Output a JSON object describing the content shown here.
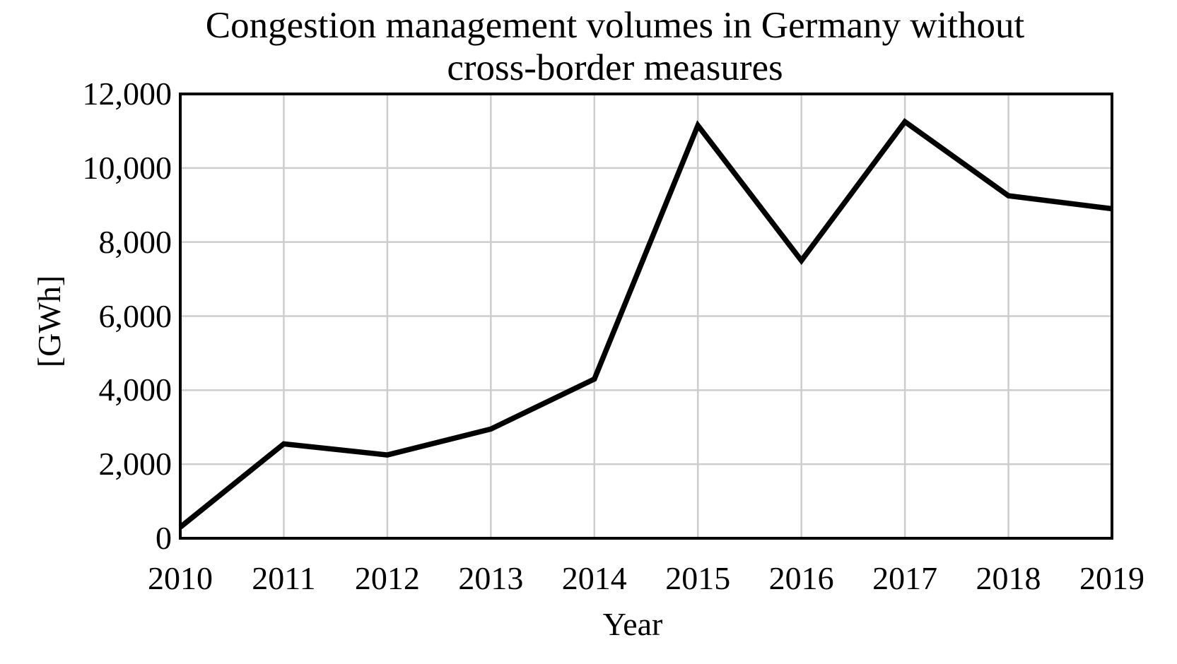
{
  "chart_data": {
    "type": "line",
    "title": "Congestion management volumes in Germany without cross-border measures",
    "title_lines": [
      "Congestion management volumes in Germany without",
      "cross-border measures"
    ],
    "xlabel": "Year",
    "ylabel": "[GWh]",
    "categories": [
      "2010",
      "2011",
      "2012",
      "2013",
      "2014",
      "2015",
      "2016",
      "2017",
      "2018",
      "2019"
    ],
    "values": [
      300,
      2550,
      2250,
      2950,
      4300,
      11150,
      7500,
      11250,
      9250,
      8900
    ],
    "ylim": [
      0,
      12000
    ],
    "yticks": [
      {
        "value": 0,
        "label": "0"
      },
      {
        "value": 2000,
        "label": "2,000"
      },
      {
        "value": 4000,
        "label": "4,000"
      },
      {
        "value": 6000,
        "label": "6,000"
      },
      {
        "value": 8000,
        "label": "8,000"
      },
      {
        "value": 10000,
        "label": "10,000"
      },
      {
        "value": 12000,
        "label": "12,000"
      }
    ],
    "grid": true,
    "legend": "none",
    "colors": {
      "line": "#000000",
      "grid": "#cdcdcd",
      "border": "#000000",
      "text": "#000000",
      "background": "#ffffff"
    }
  }
}
